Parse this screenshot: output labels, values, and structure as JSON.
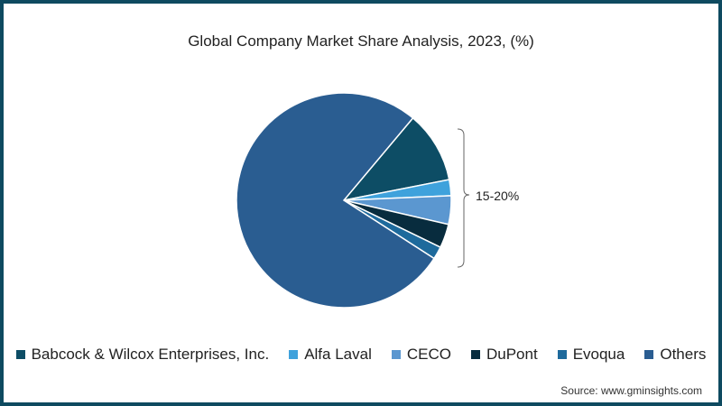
{
  "chart_data": {
    "type": "pie",
    "title": "Global Company Market Share Analysis, 2023, (%)",
    "categories": [
      "Babcock & Wilcox Enterprises, Inc.",
      "Alfa Laval",
      "CECO",
      "DuPont",
      "Evoqua",
      "Others"
    ],
    "values": [
      10.8,
      2.4,
      4.3,
      3.6,
      1.9,
      77.0
    ],
    "colors": [
      "#0d4d65",
      "#3fa2dc",
      "#5b97d0",
      "#082c3e",
      "#1e6a9c",
      "#2a5d91"
    ],
    "annotation": "15-20%",
    "legend_position": "bottom",
    "start_angle_deg": -50
  },
  "title": "Global Company Market Share Analysis, 2023, (%)",
  "legend": [
    {
      "label": "Babcock & Wilcox Enterprises, Inc.",
      "color": "#0d4d65"
    },
    {
      "label": "Alfa Laval",
      "color": "#3fa2dc"
    },
    {
      "label": "CECO",
      "color": "#5b97d0"
    },
    {
      "label": "DuPont",
      "color": "#082c3e"
    },
    {
      "label": "Evoqua",
      "color": "#1e6a9c"
    },
    {
      "label": "Others",
      "color": "#2a5d91"
    }
  ],
  "annotation": "15-20%",
  "source": "Source: www.gminsights.com"
}
